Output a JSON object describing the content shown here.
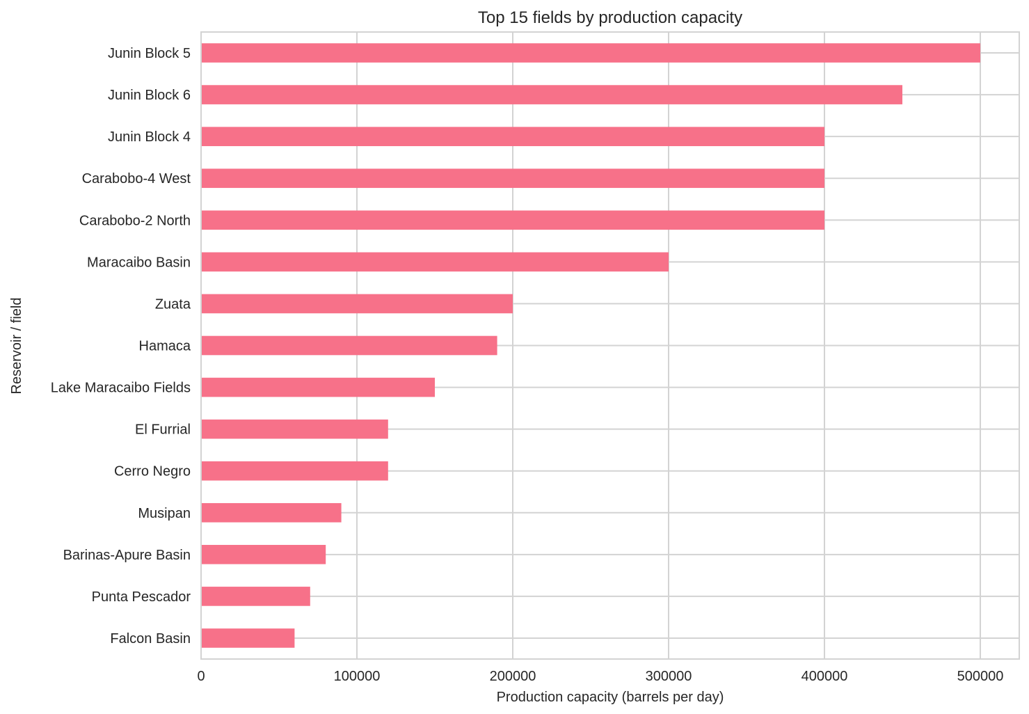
{
  "chart_data": {
    "type": "bar",
    "orientation": "horizontal",
    "title": "Top 15 fields by production capacity",
    "xlabel": "Production capacity (barrels per day)",
    "ylabel": "Reservoir / field",
    "xlim": [
      0,
      525000
    ],
    "xticks": [
      0,
      100000,
      200000,
      300000,
      400000,
      500000
    ],
    "xtick_labels": [
      "0",
      "100000",
      "200000",
      "300000",
      "400000",
      "500000"
    ],
    "grid": true,
    "bar_color": "#f77189",
    "categories": [
      "Junin Block 5",
      "Junin Block 6",
      "Junin Block 4",
      "Carabobo-4 West",
      "Carabobo-2 North",
      "Maracaibo Basin",
      "Zuata",
      "Hamaca",
      "Lake Maracaibo Fields",
      "El Furrial",
      "Cerro Negro",
      "Musipan",
      "Barinas-Apure Basin",
      "Punta Pescador",
      "Falcon Basin"
    ],
    "values": [
      500000,
      450000,
      400000,
      400000,
      400000,
      300000,
      200000,
      190000,
      150000,
      120000,
      120000,
      90000,
      80000,
      70000,
      60000
    ]
  }
}
